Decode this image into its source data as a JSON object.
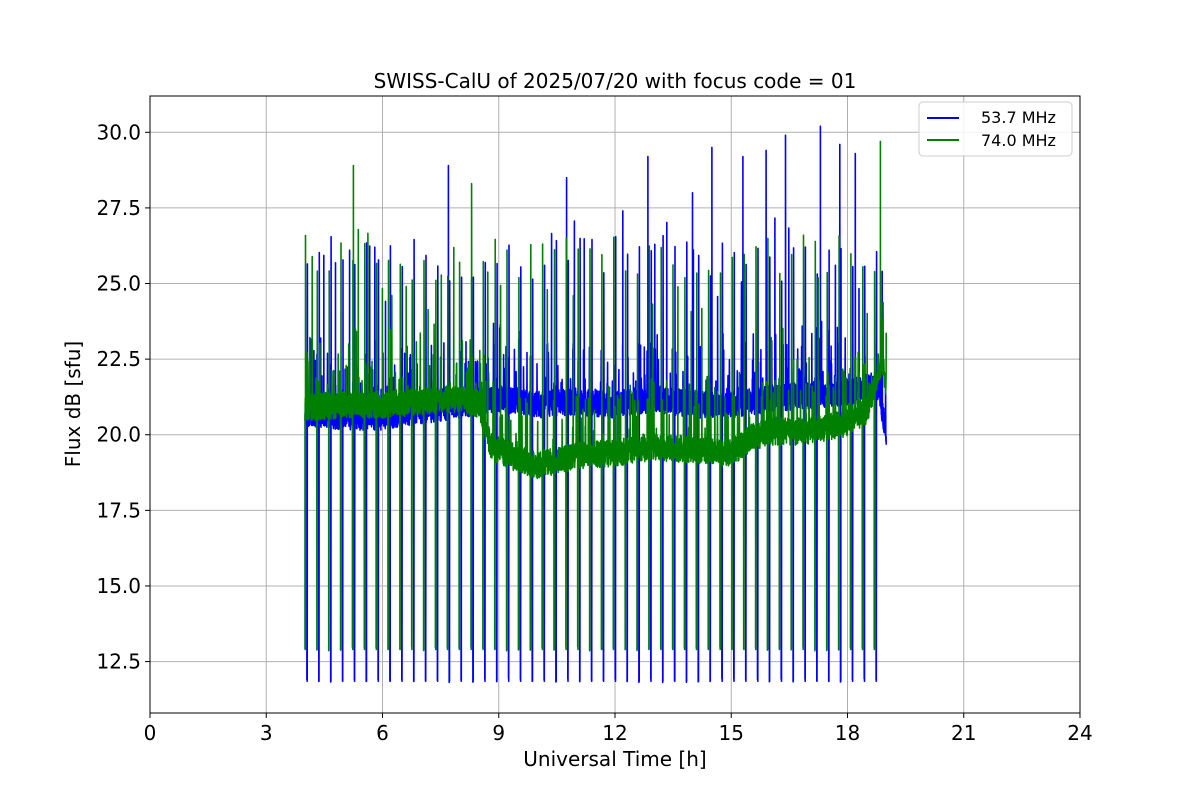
{
  "chart_data": {
    "type": "line",
    "title": "SWISS-CalU of 2025/07/20 with focus code = 01",
    "xlabel": "Universal Time [h]",
    "ylabel": "Flux dB [sfu]",
    "xlim": [
      0,
      24
    ],
    "ylim": [
      10.8,
      31.2
    ],
    "xticks": [
      0,
      3,
      6,
      9,
      12,
      15,
      18,
      21,
      24
    ],
    "xtick_labels": [
      "0",
      "3",
      "6",
      "9",
      "12",
      "15",
      "18",
      "21",
      "24"
    ],
    "yticks": [
      12.5,
      15.0,
      17.5,
      20.0,
      22.5,
      25.0,
      27.5,
      30.0
    ],
    "ytick_labels": [
      "12.5",
      "15.0",
      "17.5",
      "20.0",
      "22.5",
      "25.0",
      "27.5",
      "30.0"
    ],
    "grid": true,
    "legend_position": "top-right",
    "colors": {
      "series_1": "#0000ff",
      "series_2": "#008000"
    },
    "series": [
      {
        "name": "53.7 MHz",
        "color": "#0000ff",
        "baseline": [
          [
            4.0,
            20.7
          ],
          [
            5.0,
            20.6
          ],
          [
            6.0,
            20.6
          ],
          [
            7.0,
            20.8
          ],
          [
            8.0,
            21.0
          ],
          [
            9.0,
            21.2
          ],
          [
            10.0,
            21.0
          ],
          [
            11.0,
            21.1
          ],
          [
            12.0,
            21.0
          ],
          [
            13.0,
            21.2
          ],
          [
            14.0,
            21.0
          ],
          [
            15.0,
            21.0
          ],
          [
            16.0,
            21.2
          ],
          [
            17.0,
            21.3
          ],
          [
            18.0,
            21.4
          ],
          [
            18.8,
            21.6
          ],
          [
            19.0,
            20.0
          ]
        ],
        "cal_dips": {
          "start": 4.05,
          "interval": 0.306,
          "end": 18.8,
          "low": 11.85,
          "high": 25.8
        },
        "spikes": [
          [
            5.15,
            26.1
          ],
          [
            5.8,
            26.2
          ],
          [
            7.7,
            28.9
          ],
          [
            10.75,
            28.5
          ],
          [
            12.2,
            27.4
          ],
          [
            12.85,
            29.2
          ],
          [
            14.0,
            28.0
          ],
          [
            14.5,
            29.5
          ],
          [
            15.3,
            29.2
          ],
          [
            15.9,
            29.4
          ],
          [
            16.4,
            29.9
          ],
          [
            17.3,
            30.2
          ],
          [
            17.8,
            29.6
          ],
          [
            18.2,
            29.3
          ]
        ]
      },
      {
        "name": "74.0 MHz",
        "color": "#008000",
        "baseline": [
          [
            4.0,
            20.9
          ],
          [
            5.0,
            21.0
          ],
          [
            6.0,
            21.0
          ],
          [
            7.0,
            21.1
          ],
          [
            8.0,
            21.2
          ],
          [
            8.5,
            21.0
          ],
          [
            8.8,
            19.6
          ],
          [
            9.5,
            19.2
          ],
          [
            10.0,
            19.0
          ],
          [
            11.0,
            19.3
          ],
          [
            12.0,
            19.4
          ],
          [
            13.0,
            19.6
          ],
          [
            14.0,
            19.5
          ],
          [
            15.0,
            19.4
          ],
          [
            15.5,
            19.9
          ],
          [
            16.0,
            20.1
          ],
          [
            17.0,
            20.1
          ],
          [
            18.0,
            20.4
          ],
          [
            18.5,
            20.8
          ],
          [
            18.9,
            22.5
          ],
          [
            19.0,
            21.5
          ]
        ],
        "cal_dips": {
          "start": 4.0,
          "interval": 0.306,
          "end": 18.8,
          "low": 12.9,
          "high": 25.9
        },
        "spikes": [
          [
            5.25,
            28.9
          ],
          [
            8.3,
            28.3
          ],
          [
            18.85,
            29.7
          ]
        ]
      }
    ]
  }
}
